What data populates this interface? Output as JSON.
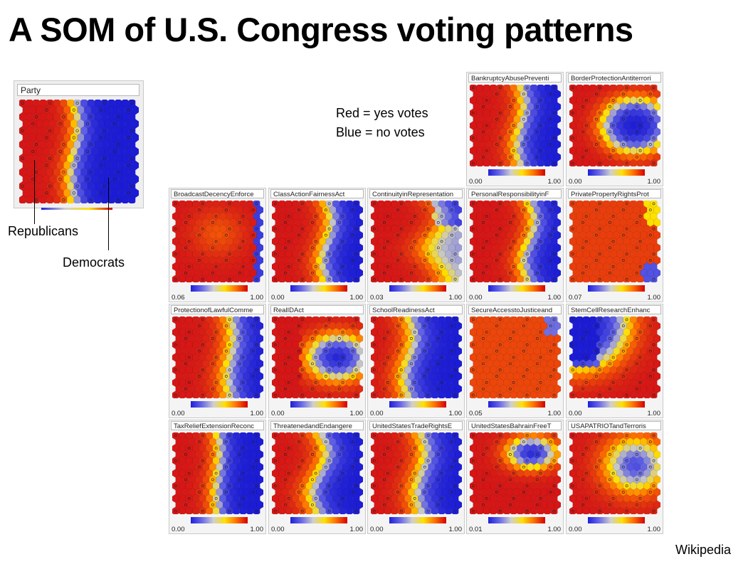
{
  "title": "A SOM of U.S. Congress voting patterns",
  "legend": {
    "yes": "Red = yes votes",
    "no": "Blue = no votes"
  },
  "labels": {
    "republicans": "Republicans",
    "democrats": "Democrats"
  },
  "credit": "Wikipedia",
  "party": {
    "title": "Party"
  },
  "panels": [
    {
      "title": "BankruptcyAbusePreventi",
      "min": "0.00",
      "max": "1.00"
    },
    {
      "title": "BorderProtectionAntiterrori",
      "min": "0.00",
      "max": "1.00"
    },
    {
      "title": "BroadcastDecencyEnforce",
      "min": "0.06",
      "max": "1.00"
    },
    {
      "title": "ClassActionFairnessAct",
      "min": "0.00",
      "max": "1.00"
    },
    {
      "title": "ContinuityinRepresentation",
      "min": "0.03",
      "max": "1.00"
    },
    {
      "title": "PersonalResponsibilityinF",
      "min": "0.00",
      "max": "1.00"
    },
    {
      "title": "PrivatePropertyRightsProt",
      "min": "0.07",
      "max": "1.00"
    },
    {
      "title": "ProtectionofLawfulComme",
      "min": "0.00",
      "max": "1.00"
    },
    {
      "title": "RealIDAct",
      "min": "0.00",
      "max": "1.00"
    },
    {
      "title": "SchoolReadinessAct",
      "min": "0.00",
      "max": "1.00"
    },
    {
      "title": "SecureAccesstoJusticeand",
      "min": "0.05",
      "max": "1.00"
    },
    {
      "title": "StemCellResearchEnhanc",
      "min": "0.00",
      "max": "1.00"
    },
    {
      "title": "TaxReliefExtensionReconc",
      "min": "0.00",
      "max": "1.00"
    },
    {
      "title": "ThreatenedandEndangere",
      "min": "0.00",
      "max": "1.00"
    },
    {
      "title": "UnitedStatesTradeRightsE",
      "min": "0.00",
      "max": "1.00"
    },
    {
      "title": "UnitedStatesBahrainFreeT",
      "min": "0.01",
      "max": "1.00"
    },
    {
      "title": "USAPATRIOTandTerroris",
      "min": "0.00",
      "max": "1.00"
    }
  ]
}
